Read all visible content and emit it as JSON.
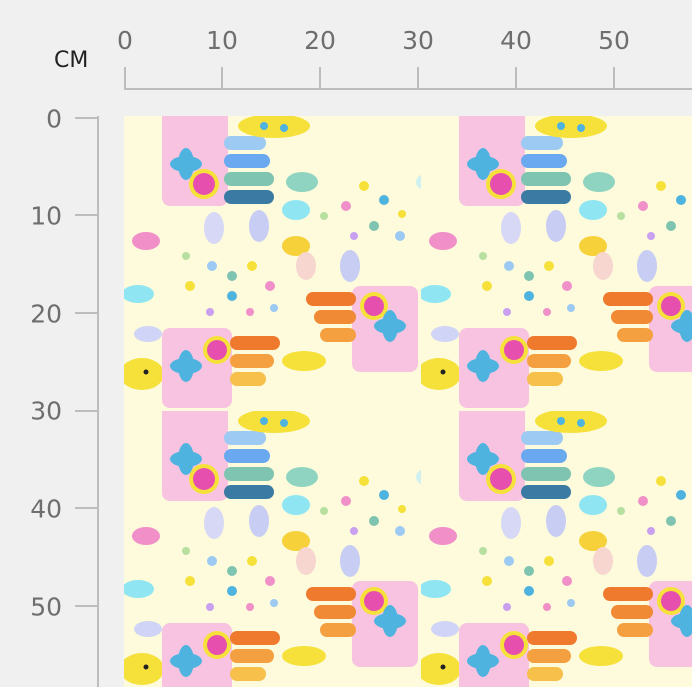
{
  "ruler": {
    "unit": "CM",
    "top_labels": [
      "0",
      "10",
      "20",
      "30",
      "40",
      "50"
    ],
    "left_labels": [
      "0",
      "10",
      "20",
      "30",
      "40",
      "50"
    ]
  },
  "fabric": {
    "description_icon": "pattern-swatch",
    "background_color": "#fdfbdc",
    "colors": [
      "#f7a8d0",
      "#e74fae",
      "#4fb3e0",
      "#f6e13a",
      "#ef7a2e",
      "#3a7aa3",
      "#7fc4b0",
      "#9ccaf2"
    ]
  }
}
